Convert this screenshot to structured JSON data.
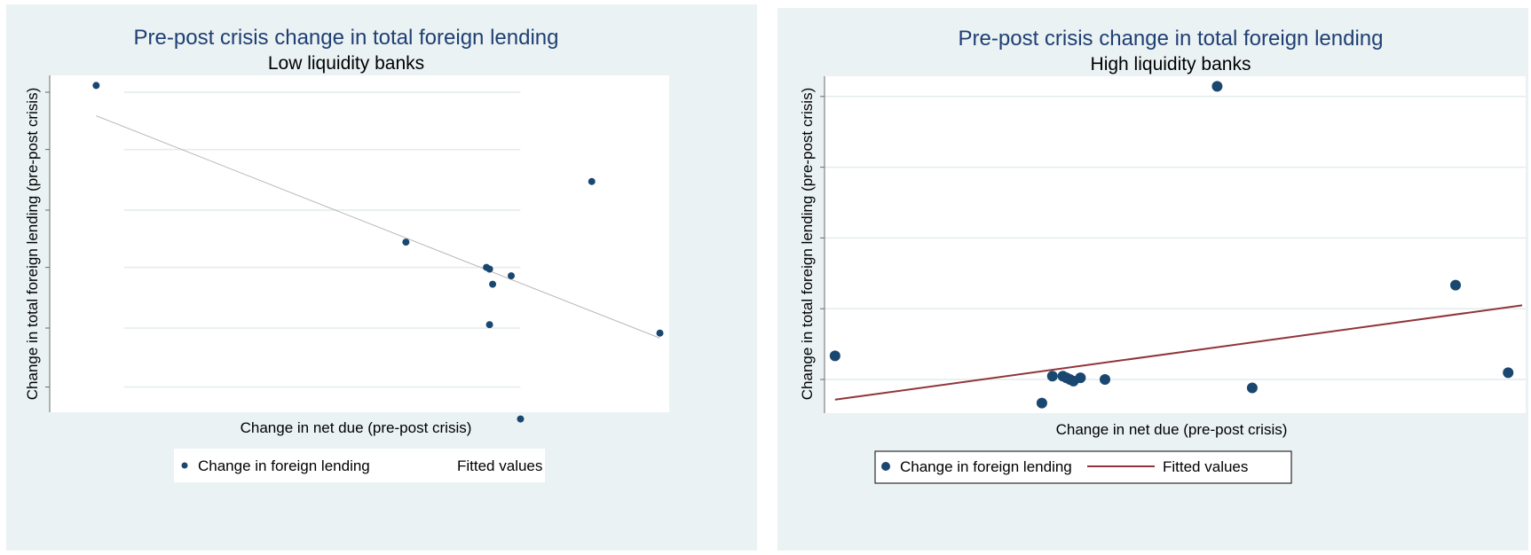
{
  "colors": {
    "panel_bg": "#eaf2f3",
    "plot_bg": "#ffffff",
    "grid": "#e4ecee",
    "marker": "#1a476f",
    "fit_line_left": "#b9b9b9",
    "fit_line_right": "#90353b",
    "title": "#1f3f73"
  },
  "chart_data": [
    {
      "type": "scatter",
      "title": "Pre-post crisis change in total foreign lending",
      "subtitle": "Low liquidity banks",
      "xlabel": "Change in net due (pre-post crisis)",
      "ylabel": "Change in total foreign lending (pre-post crisis)",
      "xlim": [
        0,
        100
      ],
      "ylim": [
        0,
        100
      ],
      "y_ticks": [
        7.5,
        25,
        43,
        60,
        78,
        95
      ],
      "grid": true,
      "legend_position": "bottom",
      "legend": [
        "Change in foreign lending",
        "Fitted values"
      ],
      "series": [
        {
          "name": "Change in foreign lending",
          "kind": "markers",
          "points": [
            [
              7.5,
              97
            ],
            [
              57.5,
              50.5
            ],
            [
              70.5,
              43
            ],
            [
              71,
              42.5
            ],
            [
              71.5,
              38
            ],
            [
              74.5,
              40.5
            ],
            [
              71,
              26
            ],
            [
              76,
              -2
            ],
            [
              87.5,
              68.5
            ],
            [
              98.5,
              23.5
            ]
          ]
        },
        {
          "name": "Fitted values",
          "kind": "line",
          "points": [
            [
              7.5,
              88
            ],
            [
              98.5,
              22
            ]
          ]
        }
      ]
    },
    {
      "type": "scatter",
      "title": "Pre-post crisis change in total foreign lending",
      "subtitle": "High liquidity banks",
      "xlabel": "Change in net due (pre-post crisis)",
      "ylabel": "Change in total foreign lending (pre-post crisis)",
      "xlim": [
        0,
        100
      ],
      "ylim": [
        0,
        100
      ],
      "y_ticks": [
        10,
        31,
        52,
        73,
        94
      ],
      "grid": true,
      "legend_position": "bottom",
      "legend": [
        "Change in foreign lending",
        "Fitted values"
      ],
      "series": [
        {
          "name": "Change in foreign lending",
          "kind": "markers",
          "points": [
            [
              1.5,
              17
            ],
            [
              32.5,
              11
            ],
            [
              34,
              11
            ],
            [
              34.5,
              10.5
            ],
            [
              35,
              10
            ],
            [
              35.5,
              9.5
            ],
            [
              36.5,
              10.5
            ],
            [
              40,
              10
            ],
            [
              31,
              3
            ],
            [
              56,
              97
            ],
            [
              61,
              7.5
            ],
            [
              90,
              38
            ],
            [
              97.5,
              12
            ]
          ]
        },
        {
          "name": "Fitted values",
          "kind": "line",
          "points": [
            [
              1.5,
              4
            ],
            [
              99.5,
              32
            ]
          ]
        }
      ]
    }
  ]
}
